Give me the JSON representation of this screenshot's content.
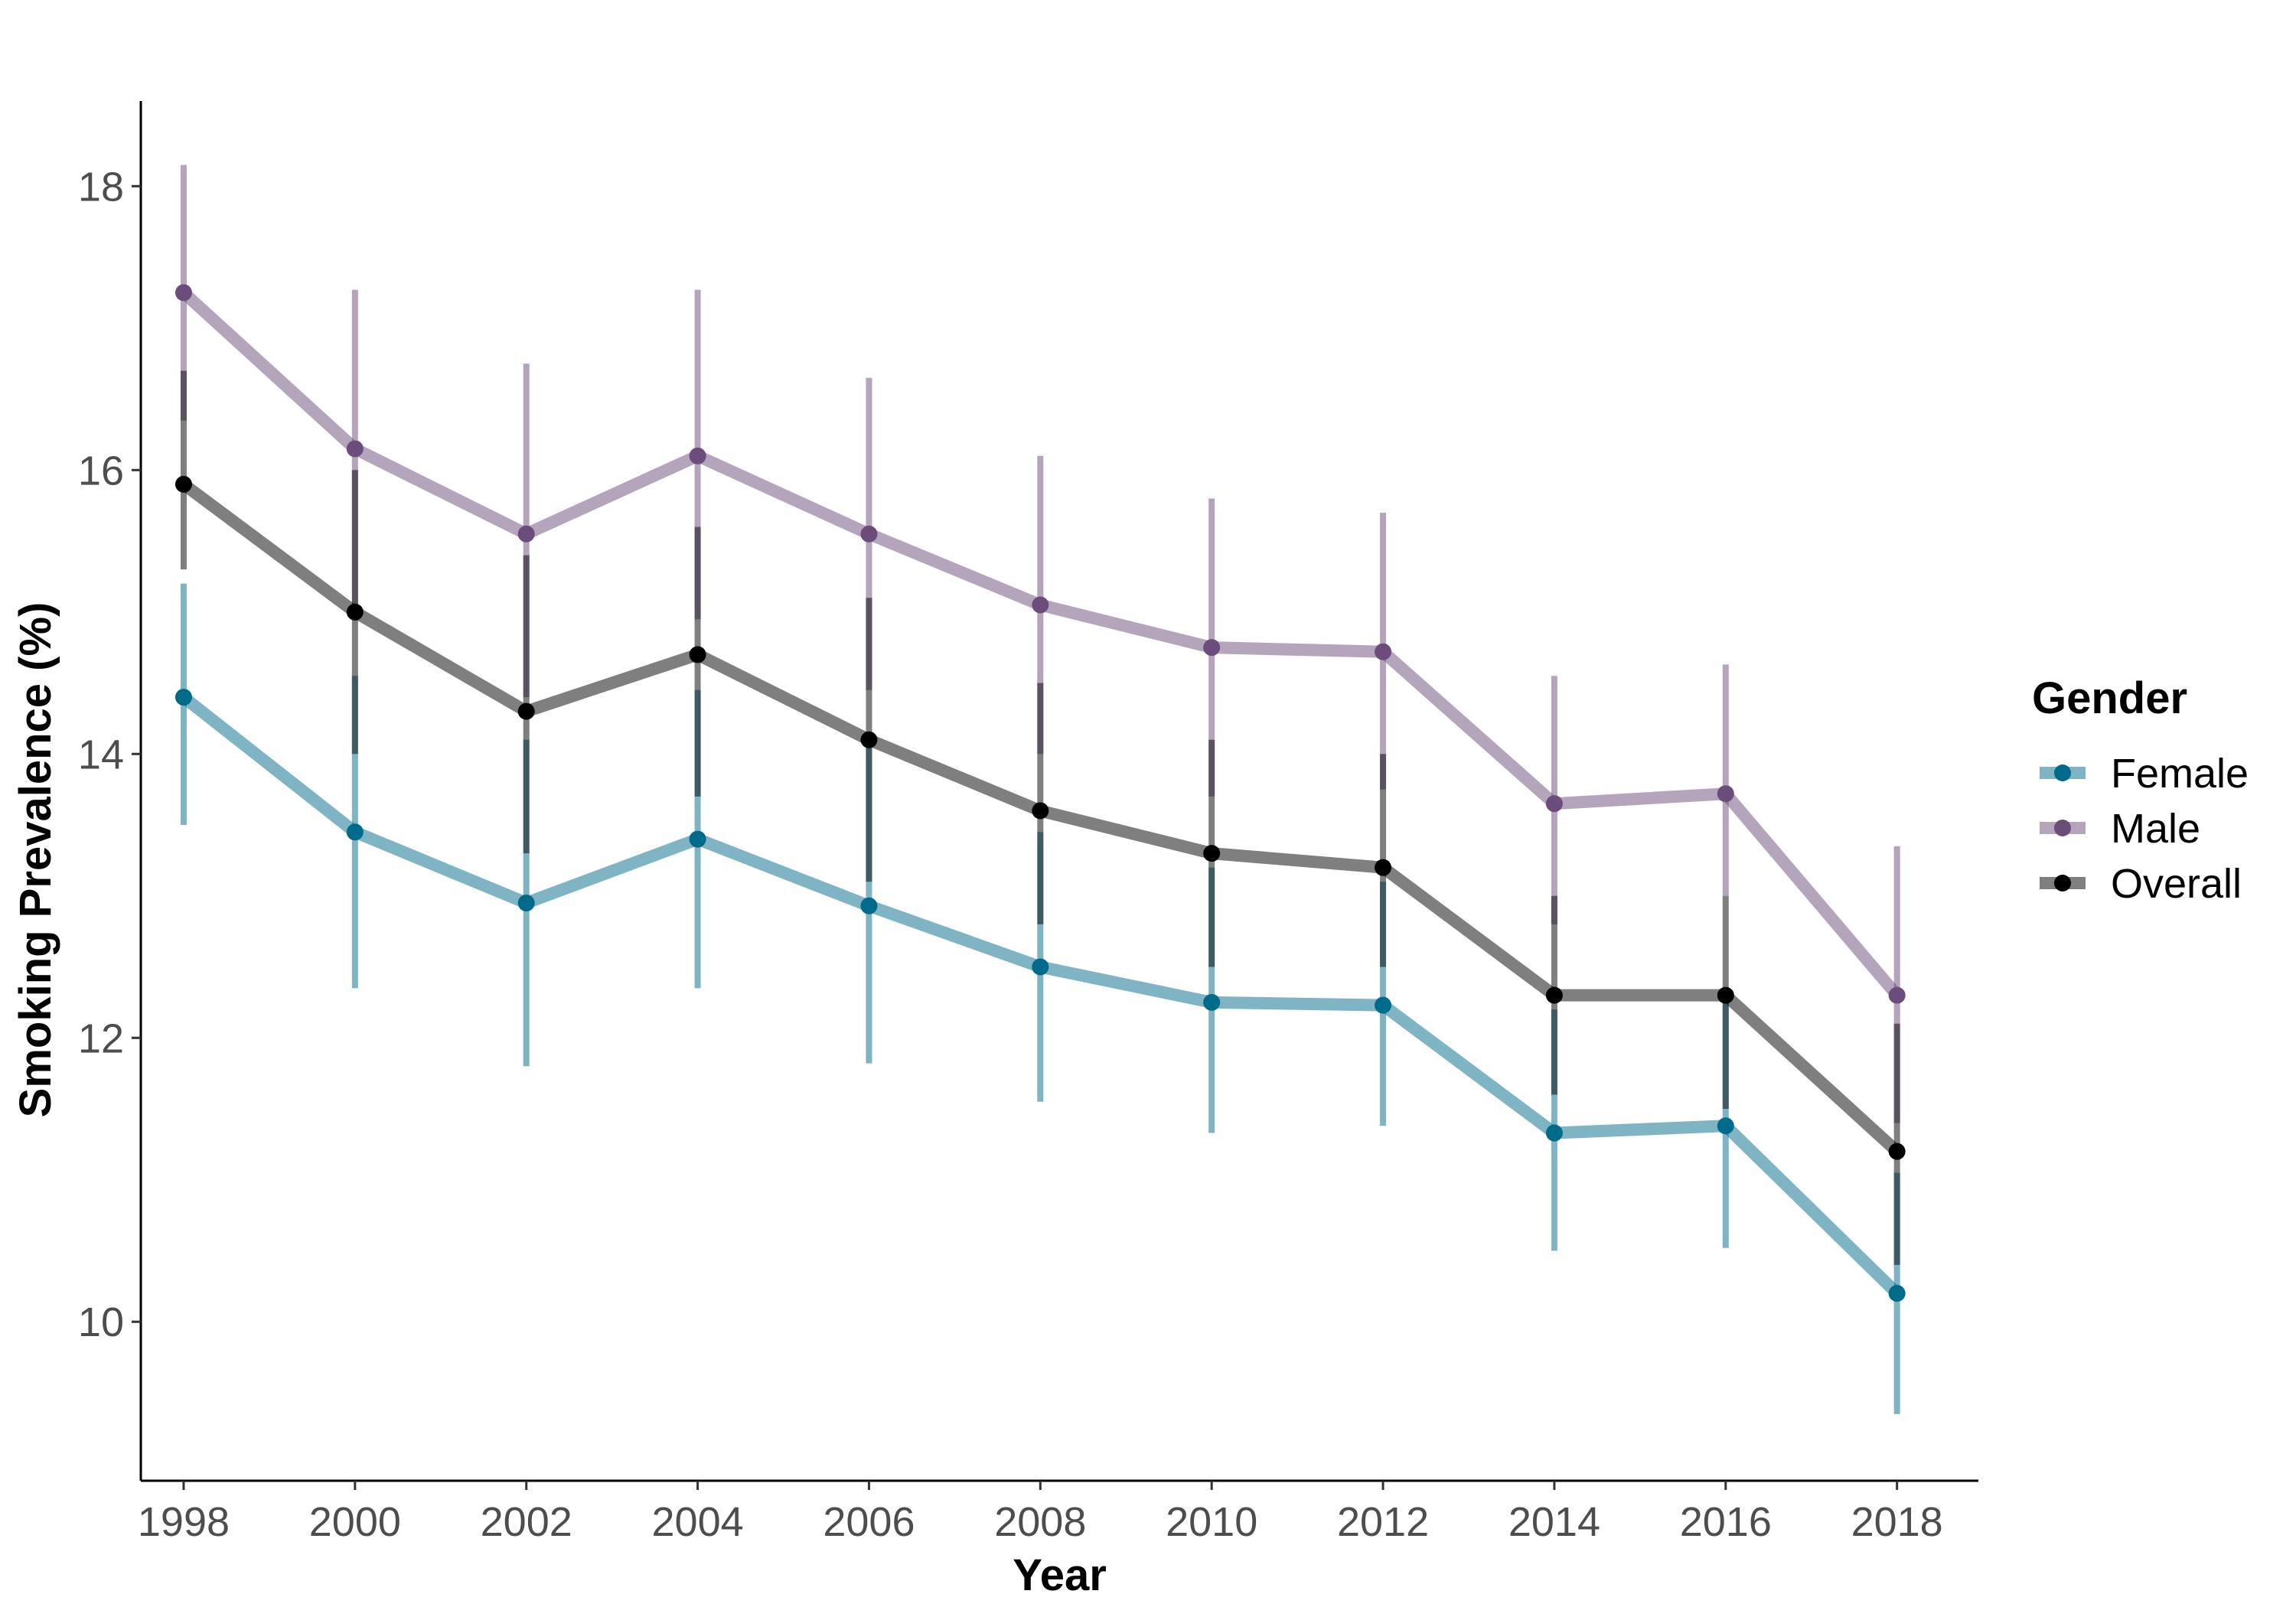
{
  "chart_data": {
    "type": "line",
    "title": "",
    "xlabel": "Year",
    "ylabel": "Smoking Prevalence (%)",
    "x": [
      1998,
      2000,
      2002,
      2004,
      2006,
      2008,
      2010,
      2012,
      2014,
      2016,
      2018
    ],
    "x_tick_labels": [
      "1998",
      "2000",
      "2002",
      "2004",
      "2006",
      "2008",
      "2010",
      "2012",
      "2014",
      "2016",
      "2018"
    ],
    "xlim": [
      1997.5,
      2018.95
    ],
    "y_ticks": [
      10,
      12,
      14,
      16,
      18
    ],
    "y_tick_labels": [
      "10",
      "12",
      "14",
      "16",
      "18"
    ],
    "ylim": [
      8.88,
      18.6
    ],
    "grid": false,
    "legend": {
      "title": "Gender",
      "position": "right"
    },
    "error_bars": true,
    "series": [
      {
        "name": "Female",
        "color": "#006a8a",
        "line_color": "#7fb3c5",
        "values": [
          14.4,
          13.45,
          12.95,
          13.4,
          12.93,
          12.5,
          12.25,
          12.23,
          11.33,
          11.38,
          10.2
        ],
        "lower": [
          13.5,
          12.35,
          11.8,
          12.35,
          11.82,
          11.55,
          11.33,
          11.38,
          10.5,
          10.52,
          9.35
        ],
        "upper": [
          15.2,
          14.55,
          14.1,
          14.45,
          14.05,
          13.45,
          13.2,
          13.1,
          12.2,
          12.25,
          11.05
        ]
      },
      {
        "name": "Male",
        "color": "#6b4c7a",
        "line_color": "#b5a5c0",
        "values": [
          17.25,
          16.15,
          15.55,
          16.1,
          15.55,
          15.05,
          14.75,
          14.72,
          13.65,
          13.72,
          12.3
        ],
        "lower": [
          16.35,
          15.05,
          14.4,
          14.95,
          14.45,
          14.0,
          13.7,
          13.75,
          12.8,
          13.0,
          11.4
        ],
        "upper": [
          18.15,
          17.27,
          16.75,
          17.27,
          16.65,
          16.1,
          15.8,
          15.7,
          14.55,
          14.63,
          13.35
        ]
      },
      {
        "name": "Overall",
        "color": "#000000",
        "line_color": "#808080",
        "values": [
          15.9,
          15.0,
          14.3,
          14.7,
          14.1,
          13.6,
          13.3,
          13.2,
          12.3,
          12.3,
          11.2
        ],
        "lower": [
          15.3,
          14.0,
          13.3,
          13.7,
          13.1,
          12.8,
          12.5,
          12.5,
          11.6,
          11.5,
          10.4
        ],
        "upper": [
          16.7,
          16.0,
          15.4,
          15.6,
          15.1,
          14.5,
          14.1,
          14.0,
          13.0,
          13.0,
          12.1
        ]
      }
    ]
  }
}
